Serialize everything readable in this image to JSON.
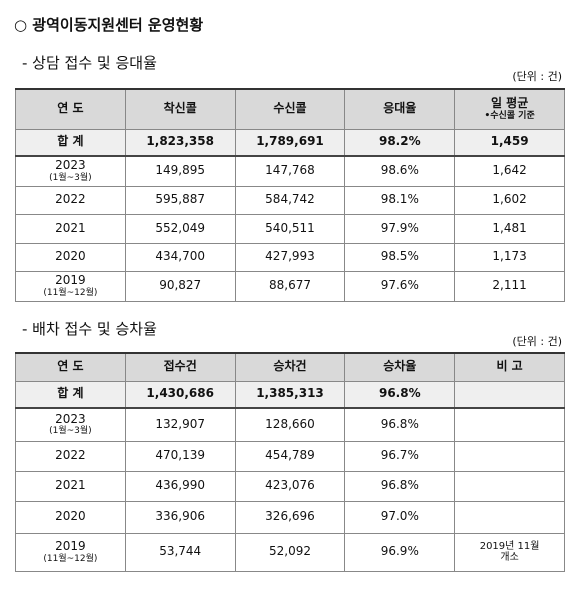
{
  "title": "○ 광역이동지원센터 운영현황",
  "sections": [
    {
      "subtitle": "- 상담 접수 및 응대율",
      "unit": "(단위 : 건)",
      "header": [
        "연 도",
        "착신콜",
        "수신콜",
        "응대율"
      ],
      "header_last": {
        "main": "일 평균",
        "sub": "•수신콜 기준"
      },
      "total": [
        "합 계",
        "1,823,358",
        "1,789,691",
        "98.2%",
        "1,459"
      ],
      "rows": [
        {
          "year": "2023",
          "period": "(1월~3월)",
          "cells": [
            "149,895",
            "147,768",
            "98.6%",
            "1,642"
          ]
        },
        {
          "year": "2022",
          "cells": [
            "595,887",
            "584,742",
            "98.1%",
            "1,602"
          ]
        },
        {
          "year": "2021",
          "cells": [
            "552,049",
            "540,511",
            "97.9%",
            "1,481"
          ]
        },
        {
          "year": "2020",
          "cells": [
            "434,700",
            "427,993",
            "98.5%",
            "1,173"
          ]
        },
        {
          "year": "2019",
          "period": "(11월~12월)",
          "cells": [
            "90,827",
            "88,677",
            "97.6%",
            "2,111"
          ]
        }
      ]
    },
    {
      "subtitle": "- 배차 접수 및 승차율",
      "unit": "(단위 : 건)",
      "header": [
        "연 도",
        "접수건",
        "승차건",
        "승차율",
        "비 고"
      ],
      "total": [
        "합 계",
        "1,430,686",
        "1,385,313",
        "96.8%"
      ],
      "rows": [
        {
          "year": "2023",
          "period": "(1월~3월)",
          "cells": [
            "132,907",
            "128,660",
            "96.8%"
          ]
        },
        {
          "year": "2022",
          "cells": [
            "470,139",
            "454,789",
            "96.7%"
          ]
        },
        {
          "year": "2021",
          "cells": [
            "436,990",
            "423,076",
            "96.8%"
          ]
        },
        {
          "year": "2020",
          "cells": [
            "336,906",
            "326,696",
            "97.0%"
          ]
        },
        {
          "year": "2019",
          "period": "(11월~12월)",
          "cells": [
            "53,744",
            "52,092",
            "96.9%"
          ],
          "note": [
            "2019년 11월",
            "개소"
          ]
        }
      ]
    }
  ]
}
